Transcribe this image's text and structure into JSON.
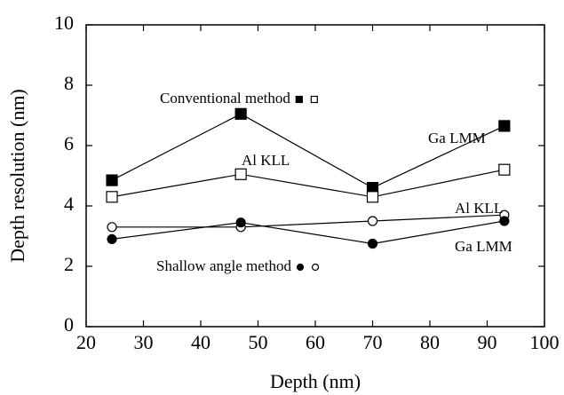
{
  "chart_data": {
    "type": "line",
    "xlabel": "Depth (nm)",
    "ylabel": "Depth resolution (nm)",
    "xlim": [
      20,
      100
    ],
    "xticks": [
      20,
      30,
      40,
      50,
      60,
      70,
      80,
      90,
      100
    ],
    "ylim": [
      0,
      10
    ],
    "yticks": [
      0,
      2,
      4,
      6,
      8,
      10
    ],
    "grid": false,
    "x": [
      24.5,
      47,
      70,
      93
    ],
    "annotations": [
      {
        "text": "Conventional method",
        "marker": "square"
      },
      {
        "text": "Shallow angle method",
        "marker": "circle"
      }
    ],
    "series": [
      {
        "name": "Ga LMM",
        "color": "#000000",
        "marker": "square",
        "filled": true,
        "values": [
          4.85,
          7.05,
          4.6,
          6.65
        ]
      },
      {
        "name": "Al KLL",
        "color": "#000000",
        "marker": "square",
        "filled": false,
        "values": [
          4.3,
          5.05,
          4.3,
          5.2
        ]
      },
      {
        "name": "Al KLL",
        "color": "#000000",
        "marker": "circle",
        "filled": false,
        "values": [
          3.3,
          3.3,
          3.5,
          3.7
        ]
      },
      {
        "name": "Ga LMM",
        "color": "#000000",
        "marker": "circle",
        "filled": true,
        "values": [
          2.9,
          3.45,
          2.75,
          3.5
        ]
      }
    ]
  }
}
